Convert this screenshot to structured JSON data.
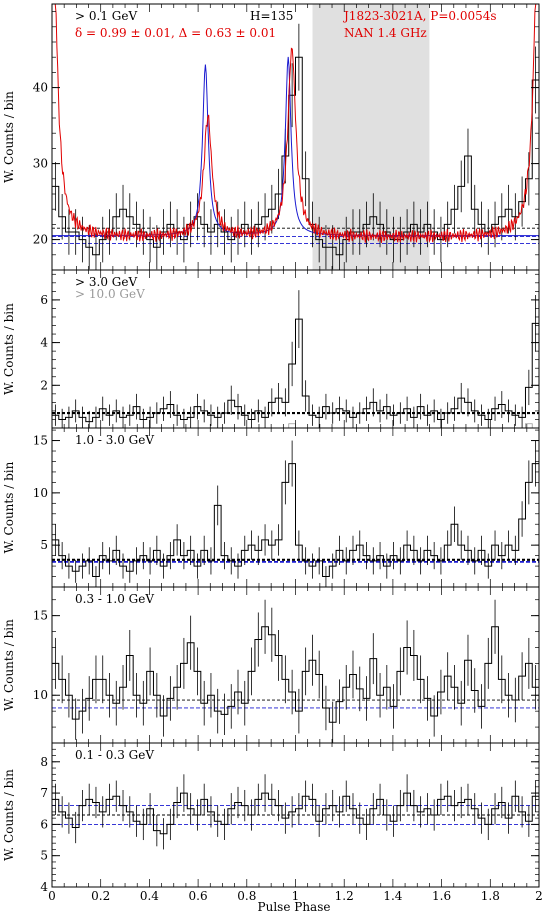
{
  "xlabel": "Pulse Phase",
  "chart_data": [
    {
      "type": "histogram",
      "panel_label": "> 0.1 GeV",
      "h_label": "H=135",
      "stats_label": "δ = 0.99 ± 0.01, Δ = 0.63 ± 0.01",
      "source_label": "J1823-3021A, P=0.0054s",
      "radio_label": "NAN 1.4 GHz",
      "ylabel": "W. Counts / bin",
      "xlim": [
        0,
        2
      ],
      "ylim": [
        16,
        51
      ],
      "yticks": [
        20,
        30,
        40
      ],
      "offpulse_range": [
        1.07,
        1.55
      ],
      "background_levels": {
        "black": 21.5,
        "blue": [
          19.5,
          20.4
        ]
      },
      "counts": [
        27,
        23,
        21,
        21,
        20,
        19,
        18,
        20,
        21,
        23,
        24,
        23,
        22,
        21,
        20,
        19,
        21,
        22,
        21,
        20,
        22,
        23,
        22,
        21,
        22,
        21,
        20,
        21,
        22,
        21,
        22,
        23,
        24,
        26,
        31,
        39,
        44,
        28,
        22,
        20,
        19,
        19,
        18,
        20,
        21,
        21,
        22,
        23,
        22,
        21,
        20,
        20,
        21,
        22,
        21,
        22,
        21,
        20,
        22,
        24,
        27,
        31,
        24,
        22,
        21,
        22,
        23,
        24,
        23,
        25,
        28,
        41
      ],
      "errors": [
        3.2,
        3,
        3,
        3,
        3,
        2.9,
        2.8,
        3,
        3,
        3.1,
        3.2,
        3.1,
        3,
        3,
        3,
        2.9,
        3,
        3,
        3,
        3,
        3,
        3.1,
        3,
        3,
        3,
        3,
        3,
        3,
        3,
        3,
        3,
        3.1,
        3.2,
        3.3,
        3.6,
        4.2,
        4.4,
        3.6,
        3,
        3,
        2.9,
        2.9,
        2.8,
        3,
        3,
        3,
        3,
        3.1,
        3,
        3,
        3,
        3,
        3,
        3,
        3,
        3,
        3,
        3,
        3,
        3.2,
        3.4,
        3.6,
        3.2,
        3,
        3,
        3,
        3.1,
        3.2,
        3.1,
        3.3,
        3.5,
        4.4
      ],
      "radio_profile": {
        "baseline": 20.3,
        "peaks": [
          [
            0.005,
            45
          ],
          [
            0.64,
            36
          ],
          [
            0.985,
            45
          ],
          [
            1.995,
            45
          ]
        ]
      },
      "gamma_model": {
        "baseline": 20.5,
        "peaks": [
          [
            0.63,
            43
          ],
          [
            0.97,
            44
          ]
        ]
      }
    },
    {
      "type": "histogram",
      "panel_label": "> 3.0 GeV",
      "secondary_label": "> 10.0 GeV",
      "ylabel": "W. Counts / bin",
      "xlim": [
        0,
        2
      ],
      "ylim": [
        0,
        7.4
      ],
      "yticks": [
        2,
        4,
        6
      ],
      "background_levels": {
        "black": 0.7
      },
      "counts": [
        0.6,
        0.4,
        0.5,
        0.8,
        0.5,
        0.3,
        0.5,
        0.9,
        0.6,
        0.8,
        0.5,
        0.6,
        1.0,
        0.4,
        0.5,
        0.7,
        0.9,
        1.1,
        0.6,
        0.4,
        0.5,
        1.0,
        0.8,
        0.6,
        0.5,
        0.7,
        1.3,
        1.0,
        0.6,
        0.4,
        0.8,
        0.5,
        1.2,
        1.4,
        1.2,
        3.0,
        5.1,
        1.5,
        0.6,
        0.5,
        1.0,
        0.7,
        0.9,
        0.8,
        0.5,
        0.7,
        0.9,
        1.2,
        0.8,
        1.0,
        0.6,
        0.7,
        0.9,
        0.5,
        1.0,
        0.6,
        0.8,
        0.4,
        0.7,
        0.9,
        1.4,
        1.2,
        0.8,
        0.6,
        0.4,
        0.9,
        1.1,
        0.8,
        0.6,
        0.5,
        1.9,
        4.9
      ],
      "counts_10gev": [
        0,
        0,
        0,
        0,
        0,
        0,
        0,
        0,
        0,
        0,
        0,
        0,
        0,
        0,
        0,
        0,
        0,
        0,
        0,
        0,
        0,
        0,
        0,
        0,
        0,
        0,
        0,
        0,
        0,
        0,
        0,
        0,
        0,
        0,
        0,
        0.2,
        0,
        0,
        0,
        0,
        0,
        0,
        0,
        0,
        0,
        0,
        0,
        0,
        0,
        0,
        0,
        0,
        0,
        0,
        0,
        0,
        0,
        0,
        0,
        0,
        0,
        0,
        0,
        0,
        0,
        0,
        0,
        0,
        0,
        0,
        0.2,
        0
      ]
    },
    {
      "type": "histogram",
      "panel_label": "1.0 - 3.0 GeV",
      "ylabel": "W. Counts / bin",
      "xlim": [
        0,
        2
      ],
      "ylim": [
        1,
        16.2
      ],
      "yticks": [
        5,
        10,
        15
      ],
      "background_levels": {
        "black": 3.6,
        "blue": [
          3.4
        ]
      },
      "counts": [
        5.5,
        4.0,
        3.0,
        2.5,
        3.0,
        3.5,
        2.0,
        4.0,
        3.5,
        4.5,
        3.0,
        2.5,
        3.5,
        4.0,
        3.5,
        4.5,
        3.0,
        4.0,
        5.5,
        4.0,
        4.5,
        3.0,
        4.5,
        3.5,
        8.8,
        4.0,
        3.5,
        3.0,
        4.5,
        5.0,
        4.5,
        5.5,
        5.0,
        5.5,
        11.0,
        12.8,
        5.0,
        3.5,
        3.0,
        3.5,
        2.0,
        3.0,
        4.5,
        3.5,
        4.5,
        5.0,
        4.0,
        3.5,
        4.0,
        3.0,
        4.0,
        3.5,
        5.0,
        4.5,
        3.5,
        4.5,
        4.0,
        3.5,
        5.0,
        7.0,
        5.0,
        4.5,
        3.5,
        4.5,
        3.0,
        5.0,
        4.0,
        5.0,
        4.5,
        7.5,
        11.0,
        12.8
      ],
      "errors": [
        1.5,
        1.3,
        1.2,
        1.1,
        1.2,
        1.3,
        1.0,
        1.3,
        1.3,
        1.4,
        1.2,
        1.1,
        1.3,
        1.3,
        1.3,
        1.4,
        1.2,
        1.3,
        1.5,
        1.3,
        1.4,
        1.2,
        1.4,
        1.3,
        1.9,
        1.3,
        1.3,
        1.2,
        1.4,
        1.4,
        1.4,
        1.5,
        1.4,
        1.5,
        2.1,
        2.2,
        1.4,
        1.3,
        1.2,
        1.3,
        1.0,
        1.2,
        1.4,
        1.3,
        1.4,
        1.4,
        1.3,
        1.3,
        1.3,
        1.2,
        1.3,
        1.3,
        1.4,
        1.4,
        1.3,
        1.4,
        1.3,
        1.3,
        1.4,
        1.7,
        1.4,
        1.4,
        1.3,
        1.4,
        1.2,
        1.4,
        1.3,
        1.4,
        1.4,
        1.7,
        2.1,
        2.2
      ]
    },
    {
      "type": "histogram",
      "panel_label": "0.3 - 1.0 GeV",
      "ylabel": "W. Counts / bin",
      "xlim": [
        0,
        2
      ],
      "ylim": [
        7,
        16.8
      ],
      "yticks": [
        10,
        15
      ],
      "background_levels": {
        "black": 9.7,
        "blue": [
          9.2
        ]
      },
      "counts": [
        12.0,
        11.0,
        10.0,
        8.5,
        9.0,
        9.8,
        11.0,
        11.0,
        10.0,
        9.5,
        10.5,
        12.5,
        10.0,
        9.5,
        11.5,
        10.0,
        8.7,
        9.8,
        10.5,
        12.0,
        13.3,
        11.5,
        9.5,
        10.0,
        9.0,
        8.8,
        9.3,
        10.2,
        9.5,
        11.5,
        13.5,
        14.3,
        13.8,
        12.5,
        11.0,
        10.2,
        9.0,
        11.5,
        12.2,
        11.3,
        9.2,
        8.3,
        9.6,
        10.5,
        11.3,
        10.4,
        9.8,
        12.3,
        10.0,
        10.5,
        9.3,
        11.5,
        13.0,
        12.5,
        11.0,
        9.8,
        8.7,
        10.2,
        11.2,
        10.5,
        9.5,
        12.2,
        10.3,
        9.3,
        12.0,
        14.3,
        11.0,
        10.0,
        9.7,
        11.2,
        12.0,
        10.5
      ],
      "errors": [
        1.6,
        1.5,
        1.4,
        1.3,
        1.4,
        1.4,
        1.5,
        1.5,
        1.4,
        1.4,
        1.4,
        1.6,
        1.4,
        1.4,
        1.5,
        1.4,
        1.3,
        1.4,
        1.4,
        1.6,
        1.7,
        1.5,
        1.4,
        1.4,
        1.4,
        1.3,
        1.4,
        1.4,
        1.4,
        1.5,
        1.7,
        1.7,
        1.7,
        1.6,
        1.5,
        1.4,
        1.4,
        1.5,
        1.6,
        1.5,
        1.4,
        1.3,
        1.4,
        1.4,
        1.5,
        1.4,
        1.4,
        1.6,
        1.4,
        1.4,
        1.4,
        1.5,
        1.7,
        1.6,
        1.5,
        1.4,
        1.3,
        1.4,
        1.5,
        1.4,
        1.4,
        1.6,
        1.4,
        1.4,
        1.6,
        1.7,
        1.5,
        1.4,
        1.4,
        1.5,
        1.6,
        1.4
      ]
    },
    {
      "type": "histogram",
      "panel_label": "0.1 - 0.3 GeV",
      "ylabel": "W. Counts / bin",
      "xlim": [
        0,
        2
      ],
      "ylim": [
        4,
        8.6
      ],
      "yticks": [
        4,
        5,
        6,
        7,
        8
      ],
      "xticks": [
        0,
        0.2,
        0.4,
        0.6,
        0.8,
        1,
        1.2,
        1.4,
        1.6,
        1.8,
        2
      ],
      "background_levels": {
        "black": 6.3,
        "blue": [
          6.6,
          6.0
        ]
      },
      "counts": [
        6.8,
        6.4,
        6.2,
        5.9,
        6.6,
        6.8,
        6.7,
        6.4,
        6.8,
        6.9,
        6.6,
        6.4,
        6.1,
        6.0,
        6.5,
        5.8,
        5.7,
        6.0,
        6.7,
        7.0,
        6.5,
        6.3,
        6.8,
        6.4,
        6.1,
        6.0,
        6.5,
        6.7,
        6.6,
        6.3,
        6.8,
        7.0,
        6.8,
        6.6,
        6.2,
        6.4,
        6.5,
        6.9,
        6.8,
        6.1,
        6.5,
        6.6,
        6.4,
        6.9,
        6.5,
        6.2,
        6.0,
        6.5,
        6.8,
        6.3,
        6.1,
        6.6,
        7.0,
        6.6,
        6.4,
        6.5,
        6.3,
        6.8,
        6.9,
        6.6,
        6.7,
        6.8,
        6.5,
        6.2,
        6.0,
        6.5,
        6.7,
        6.2,
        6.9,
        6.4,
        6.1,
        6.9
      ],
      "errors": [
        0.5,
        0.5,
        0.5,
        0.5,
        0.5,
        0.5,
        0.5,
        0.5,
        0.5,
        0.5,
        0.5,
        0.5,
        0.5,
        0.5,
        0.5,
        0.5,
        0.5,
        0.5,
        0.5,
        0.6,
        0.5,
        0.5,
        0.5,
        0.5,
        0.5,
        0.5,
        0.5,
        0.5,
        0.5,
        0.5,
        0.5,
        0.6,
        0.5,
        0.5,
        0.5,
        0.5,
        0.5,
        0.5,
        0.5,
        0.5,
        0.5,
        0.5,
        0.5,
        0.5,
        0.5,
        0.5,
        0.5,
        0.5,
        0.5,
        0.5,
        0.5,
        0.5,
        0.6,
        0.5,
        0.5,
        0.5,
        0.5,
        0.5,
        0.5,
        0.5,
        0.5,
        0.5,
        0.5,
        0.5,
        0.5,
        0.5,
        0.5,
        0.5,
        0.5,
        0.5,
        0.5,
        0.5
      ]
    }
  ]
}
